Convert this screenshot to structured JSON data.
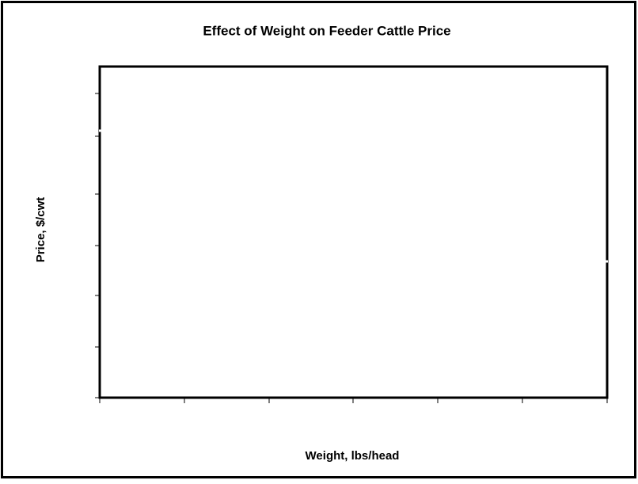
{
  "chart_data": {
    "type": "line",
    "title": "Effect of Weight on Feeder Cattle Price",
    "x_label": "Weight, lbs/head",
    "y_label": "Price, $/cwt"
  }
}
